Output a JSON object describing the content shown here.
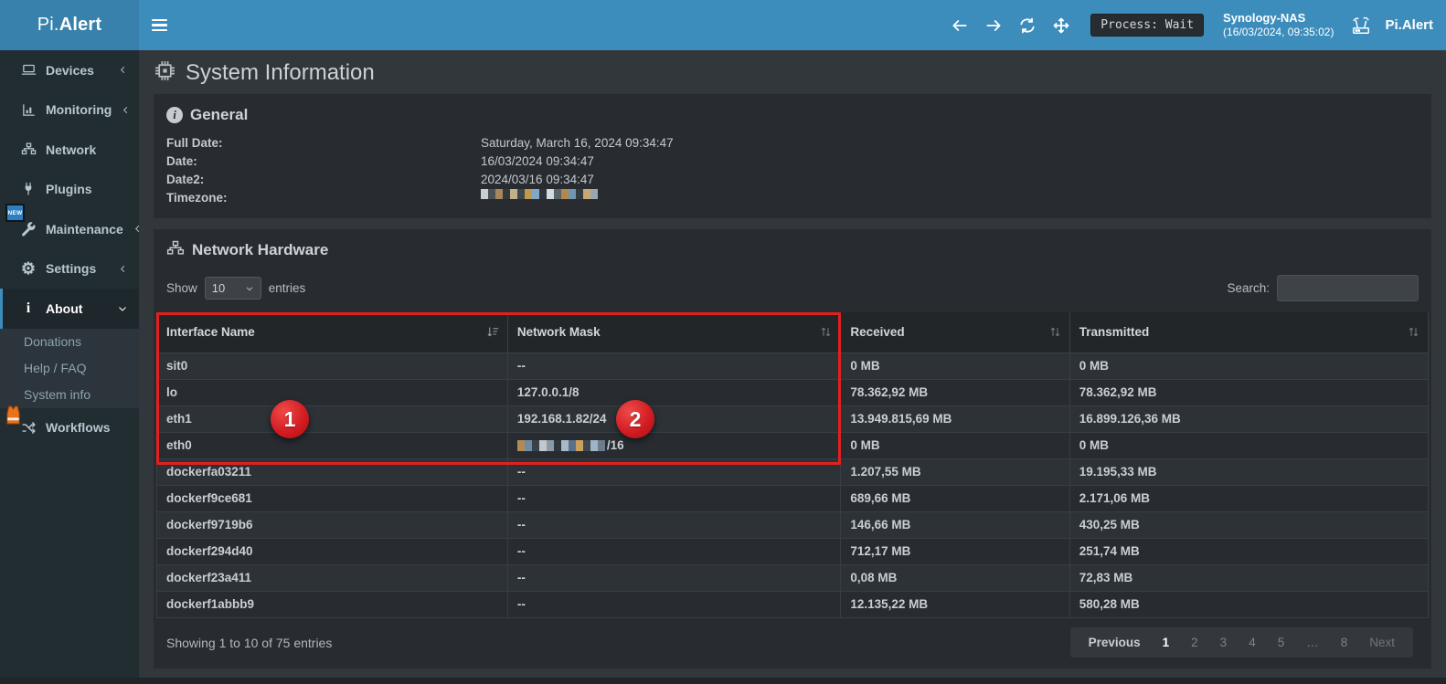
{
  "topbar": {
    "logo": {
      "prefix": "Pi.",
      "suffix": "Alert"
    },
    "process_badge": "Process: Wait",
    "host": {
      "name": "Synology-NAS",
      "time": "(16/03/2024, 09:35:02)"
    },
    "brand": "Pi.Alert"
  },
  "sidebar": {
    "new_badge": "NEW",
    "items": [
      {
        "label": "Devices",
        "chevron": "left"
      },
      {
        "label": "Monitoring",
        "chevron": "left"
      },
      {
        "label": "Network",
        "chevron": "none"
      },
      {
        "label": "Plugins",
        "chevron": "none"
      },
      {
        "label": "Maintenance",
        "chevron": "left",
        "badge": "NEW"
      },
      {
        "label": "Settings",
        "chevron": "left"
      },
      {
        "label": "About",
        "chevron": "down",
        "active": true
      }
    ],
    "about_submenu": [
      "Donations",
      "Help / FAQ",
      "System info"
    ],
    "workflows_label": "Workflows"
  },
  "page": {
    "title": "System Information"
  },
  "general": {
    "title": "General",
    "rows": [
      {
        "label": "Full Date:",
        "value": "Saturday, March 16, 2024 09:34:47"
      },
      {
        "label": "Date:",
        "value": "16/03/2024 09:34:47"
      },
      {
        "label": "Date2:",
        "value": "2024/03/16 09:34:47"
      },
      {
        "label": "Timezone:",
        "value": "",
        "redacted": true
      }
    ]
  },
  "network_hardware": {
    "title": "Network Hardware",
    "show_label": "Show",
    "page_size": "10",
    "entries_label": "entries",
    "search_label": "Search:",
    "table": {
      "columns": [
        {
          "label": "Interface Name",
          "sort": "desc"
        },
        {
          "label": "Network Mask",
          "sort": "both"
        },
        {
          "label": "Received",
          "sort": "both"
        },
        {
          "label": "Transmitted",
          "sort": "both"
        }
      ],
      "rows": [
        {
          "interface": "sit0",
          "mask": "--",
          "received": "0 MB",
          "transmitted": "0 MB"
        },
        {
          "interface": "lo",
          "mask": "127.0.0.1/8",
          "received": "78.362,92 MB",
          "transmitted": "78.362,92 MB"
        },
        {
          "interface": "eth1",
          "mask": "192.168.1.82/24",
          "received": "13.949.815,69 MB",
          "transmitted": "16.899.126,36 MB"
        },
        {
          "interface": "eth0",
          "mask": "/16",
          "mask_redacted": true,
          "received": "0 MB",
          "transmitted": "0 MB"
        },
        {
          "interface": "dockerfa03211",
          "mask": "--",
          "received": "1.207,55 MB",
          "transmitted": "19.195,33 MB"
        },
        {
          "interface": "dockerf9ce681",
          "mask": "--",
          "received": "689,66 MB",
          "transmitted": "2.171,06 MB"
        },
        {
          "interface": "dockerf9719b6",
          "mask": "--",
          "received": "146,66 MB",
          "transmitted": "430,25 MB"
        },
        {
          "interface": "dockerf294d40",
          "mask": "--",
          "received": "712,17 MB",
          "transmitted": "251,74 MB"
        },
        {
          "interface": "dockerf23a411",
          "mask": "--",
          "received": "0,08 MB",
          "transmitted": "72,83 MB"
        },
        {
          "interface": "dockerf1abbb9",
          "mask": "--",
          "received": "12.135,22 MB",
          "transmitted": "580,28 MB"
        }
      ]
    },
    "footer": {
      "showing": "Showing 1 to 10 of 75 entries",
      "pagination": {
        "previous": "Previous",
        "pages": [
          "1",
          "2",
          "3",
          "4",
          "5",
          "…",
          "8"
        ],
        "active": "1",
        "next": "Next"
      }
    }
  },
  "annotations": {
    "badge1": "1",
    "badge2": "2"
  },
  "colors": {
    "accent": "#3c8dbc",
    "topbar": "#3c8dbc",
    "sidebar": "#222d32",
    "panel": "#282c30",
    "annotation_red": "#e2201e"
  },
  "redaction_pixels": {
    "timezone": [
      "#c9ced2",
      "#4a5258",
      "#a8875a",
      "#32383d",
      "#c2b089",
      "#3c464c",
      "#c0984e",
      "#7fa9c4",
      "#2e343a",
      "#d5dade",
      "#58636b",
      "#b4884d",
      "#6f97b1",
      "#343b41",
      "#c9a96f",
      "#9aa7b0"
    ],
    "eth0_mask": [
      "#b28a55",
      "#6f8ca3",
      "#3a4249",
      "#c3c8cd",
      "#8a9aa7",
      "#2f363c",
      "#a9bac6",
      "#57718a",
      "#c9a05c",
      "#3d474f",
      "#9fb5c6",
      "#6b7d8c"
    ]
  }
}
